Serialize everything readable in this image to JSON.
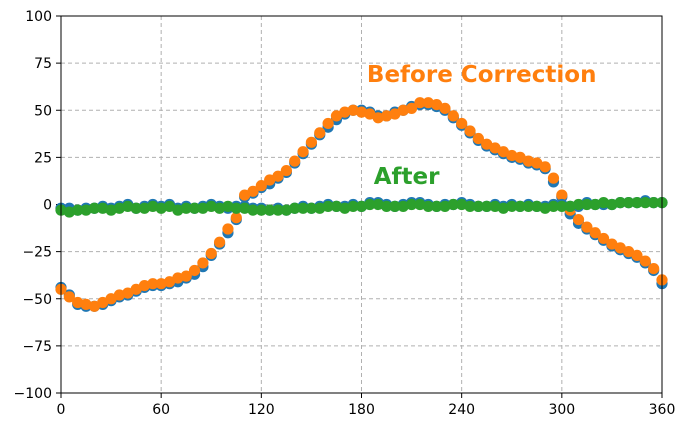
{
  "chart_data": {
    "type": "scatter",
    "title": "",
    "xlabel": "",
    "ylabel": "",
    "xlim": [
      0,
      360
    ],
    "ylim": [
      -100,
      100
    ],
    "x_ticks": [
      0,
      60,
      120,
      180,
      240,
      300,
      360
    ],
    "y_ticks": [
      -100,
      -75,
      -50,
      -25,
      0,
      25,
      50,
      75,
      100
    ],
    "x_tick_labels": [
      "0",
      "60",
      "120",
      "180",
      "240",
      "300",
      "360"
    ],
    "y_tick_labels": [
      "−100",
      "−75",
      "−50",
      "−25",
      "0",
      "25",
      "50",
      "75",
      "100"
    ],
    "grid": true,
    "annotations": [
      {
        "text": "Before Correction",
        "x": 252,
        "y": 65,
        "color": "#ff7f0e"
      },
      {
        "text": "After",
        "x": 207,
        "y": 11,
        "color": "#2ca02c"
      }
    ],
    "series": [
      {
        "color": "#1f77b4",
        "layer": "under",
        "x": [
          0,
          5,
          10,
          15,
          20,
          25,
          30,
          35,
          40,
          45,
          50,
          55,
          60,
          65,
          70,
          75,
          80,
          85,
          90,
          95,
          100,
          105,
          110,
          115,
          120,
          125,
          130,
          135,
          140,
          145,
          150,
          155,
          160,
          165,
          170,
          175,
          180,
          185,
          190,
          195,
          200,
          205,
          210,
          215,
          220,
          225,
          230,
          235,
          240,
          245,
          250,
          255,
          260,
          265,
          270,
          275,
          280,
          285,
          290,
          295,
          300,
          305,
          310,
          315,
          320,
          325,
          330,
          335,
          340,
          345,
          350,
          355,
          360
        ],
        "values": [
          -44,
          -48,
          -53,
          -54,
          -54,
          -53,
          -51,
          -49,
          -48,
          -46,
          -44,
          -43,
          -43,
          -42,
          -41,
          -39,
          -37,
          -33,
          -27,
          -21,
          -15,
          -8,
          4,
          6,
          9,
          11,
          14,
          17,
          22,
          27,
          32,
          37,
          41,
          45,
          48,
          50,
          50,
          49,
          47,
          47,
          49,
          50,
          52,
          53,
          53,
          52,
          50,
          46,
          42,
          38,
          34,
          31,
          29,
          27,
          25,
          24,
          22,
          21,
          19,
          12,
          4,
          -5,
          -10,
          -13,
          -16,
          -19,
          -22,
          -24,
          -26,
          -28,
          -31,
          -35,
          -42
        ]
      },
      {
        "color": "#ff7f0e",
        "layer": "under",
        "x": [
          0,
          5,
          10,
          15,
          20,
          25,
          30,
          35,
          40,
          45,
          50,
          55,
          60,
          65,
          70,
          75,
          80,
          85,
          90,
          95,
          100,
          105,
          110,
          115,
          120,
          125,
          130,
          135,
          140,
          145,
          150,
          155,
          160,
          165,
          170,
          175,
          180,
          185,
          190,
          195,
          200,
          205,
          210,
          215,
          220,
          225,
          230,
          235,
          240,
          245,
          250,
          255,
          260,
          265,
          270,
          275,
          280,
          285,
          290,
          295,
          300,
          305,
          310,
          315,
          320,
          325,
          330,
          335,
          340,
          345,
          350,
          355,
          360
        ],
        "values": [
          -45,
          -49,
          -52,
          -53,
          -54,
          -52,
          -50,
          -48,
          -47,
          -45,
          -43,
          -42,
          -42,
          -41,
          -39,
          -38,
          -35,
          -31,
          -26,
          -20,
          -13,
          -7,
          5,
          7,
          10,
          13,
          15,
          18,
          23,
          28,
          33,
          38,
          43,
          47,
          49,
          50,
          49,
          48,
          46,
          47,
          48,
          50,
          51,
          54,
          54,
          53,
          51,
          47,
          43,
          39,
          35,
          32,
          30,
          28,
          26,
          25,
          23,
          22,
          20,
          14,
          5,
          -3,
          -8,
          -12,
          -15,
          -18,
          -21,
          -23,
          -25,
          -27,
          -30,
          -34,
          -40
        ]
      },
      {
        "color": "#1f77b4",
        "layer": "over",
        "x": [
          0,
          5,
          10,
          15,
          20,
          25,
          30,
          35,
          40,
          45,
          50,
          55,
          60,
          65,
          70,
          75,
          80,
          85,
          90,
          95,
          100,
          105,
          110,
          115,
          120,
          125,
          130,
          135,
          140,
          145,
          150,
          155,
          160,
          165,
          170,
          175,
          180,
          185,
          190,
          195,
          200,
          205,
          210,
          215,
          220,
          225,
          230,
          235,
          240,
          245,
          250,
          255,
          260,
          265,
          270,
          275,
          280,
          285,
          290,
          295,
          300,
          305,
          310,
          315,
          320,
          325,
          330,
          335,
          340,
          345,
          350,
          355,
          360
        ],
        "values": [
          -2,
          -2,
          -3,
          -2,
          -2,
          -1,
          -2,
          -1,
          0,
          -2,
          -1,
          0,
          -1,
          0,
          -2,
          -1,
          -2,
          -1,
          0,
          -1,
          -2,
          -1,
          -1,
          -2,
          -2,
          -3,
          -2,
          -3,
          -2,
          -1,
          -2,
          -1,
          0,
          -1,
          -1,
          0,
          -1,
          1,
          1,
          0,
          -1,
          0,
          1,
          1,
          0,
          -1,
          0,
          0,
          1,
          0,
          -1,
          -1,
          0,
          -1,
          0,
          -1,
          0,
          -1,
          -1,
          0,
          0,
          -1,
          -1,
          1,
          0,
          0,
          0,
          1,
          1,
          1,
          2,
          1,
          1
        ]
      },
      {
        "color": "#2ca02c",
        "layer": "over",
        "x": [
          0,
          5,
          10,
          15,
          20,
          25,
          30,
          35,
          40,
          45,
          50,
          55,
          60,
          65,
          70,
          75,
          80,
          85,
          90,
          95,
          100,
          105,
          110,
          115,
          120,
          125,
          130,
          135,
          140,
          145,
          150,
          155,
          160,
          165,
          170,
          175,
          180,
          185,
          190,
          195,
          200,
          205,
          210,
          215,
          220,
          225,
          230,
          235,
          240,
          245,
          250,
          255,
          260,
          265,
          270,
          275,
          280,
          285,
          290,
          295,
          300,
          305,
          310,
          315,
          320,
          325,
          330,
          335,
          340,
          345,
          350,
          355,
          360
        ],
        "values": [
          -3,
          -4,
          -3,
          -3,
          -2,
          -2,
          -3,
          -2,
          -1,
          -2,
          -2,
          -1,
          -2,
          -1,
          -3,
          -2,
          -2,
          -2,
          -1,
          -2,
          -1,
          -2,
          -2,
          -3,
          -3,
          -3,
          -3,
          -3,
          -2,
          -2,
          -2,
          -2,
          -1,
          -1,
          -2,
          -1,
          -1,
          0,
          0,
          -1,
          -1,
          -1,
          0,
          0,
          -1,
          -1,
          -1,
          0,
          0,
          -1,
          -1,
          -1,
          -1,
          -2,
          -1,
          -1,
          -1,
          -1,
          -2,
          -1,
          -1,
          -1,
          0,
          0,
          0,
          1,
          0,
          1,
          1,
          1,
          1,
          1,
          1
        ]
      }
    ]
  }
}
